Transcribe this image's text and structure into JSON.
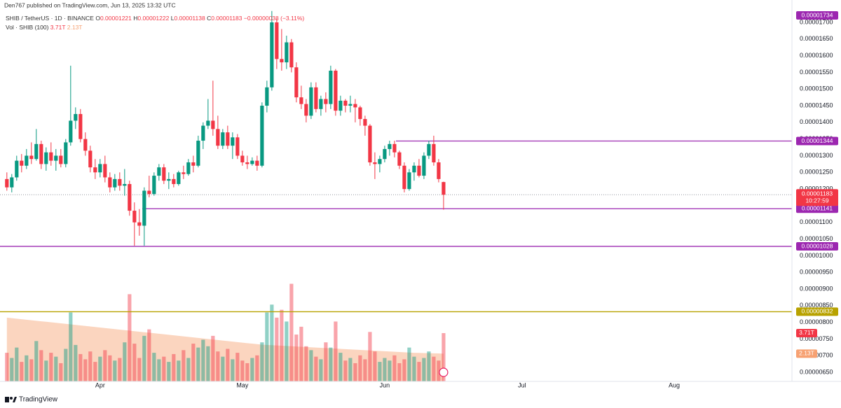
{
  "chart_data": {
    "type": "candlestick",
    "published": "Den767 published on TradingView.com, Jun 13, 2025 13:32 UTC",
    "symbol": "SHIB / TetherUS · 1D · BINANCE",
    "ohlc_legend": [
      {
        "label": "O",
        "value": "0.00001221"
      },
      {
        "label": "H",
        "value": "0.00001222"
      },
      {
        "label": "L",
        "value": "0.00001138"
      },
      {
        "label": "C",
        "value": "0.00001183"
      }
    ],
    "change": "−0.00000038 (−3.11%)",
    "up_color": "#089981",
    "down_color": "#f23645",
    "open": [
      1.23e-05,
      1.205e-05,
      1.235e-05,
      1.285e-05,
      1.27e-05,
      1.3e-05,
      1.29e-05,
      1.335e-05,
      1.275e-05,
      1.31e-05,
      1.285e-05,
      1.3e-05,
      1.275e-05,
      1.34e-05,
      1.405e-05,
      1.425e-05,
      1.35e-05,
      1.315e-05,
      1.265e-05,
      1.25e-05,
      1.275e-05,
      1.235e-05,
      1.205e-05,
      1.23e-05,
      1.21e-05,
      1.215e-05,
      1.135e-05,
      1.1e-05,
      1.09e-05,
      1.195e-05,
      1.185e-05,
      1.24e-05,
      1.265e-05,
      1.225e-05,
      1.23e-05,
      1.215e-05,
      1.25e-05,
      1.245e-05,
      1.28e-05,
      1.27e-05,
      1.345e-05,
      1.39e-05,
      1.405e-05,
      1.38e-05,
      1.33e-05,
      1.37e-05,
      1.33e-05,
      1.355e-05,
      1.3e-05,
      1.28e-05,
      1.275e-05,
      1.285e-05,
      1.27e-05,
      1.45e-05,
      1.505e-05,
      1.7e-05,
      1.59e-05,
      1.58e-05,
      1.64e-05,
      1.565e-05,
      1.475e-05,
      1.455e-05,
      1.42e-05,
      1.505e-05,
      1.44e-05,
      1.47e-05,
      1.455e-05,
      1.555e-05,
      1.435e-05,
      1.465e-05,
      1.45e-05,
      1.455e-05,
      1.445e-05,
      1.41e-05,
      1.39e-05,
      1.28e-05,
      1.275e-05,
      1.29e-05,
      1.32e-05,
      1.335e-05,
      1.31e-05,
      1.27e-05,
      1.2e-05,
      1.25e-05,
      1.27e-05,
      1.24e-05,
      1.3e-05,
      1.335e-05,
      1.28e-05,
      1.221e-05
    ],
    "high": [
      1.25e-05,
      1.245e-05,
      1.3e-05,
      1.305e-05,
      1.32e-05,
      1.34e-05,
      1.38e-05,
      1.345e-05,
      1.325e-05,
      1.34e-05,
      1.32e-05,
      1.32e-05,
      1.35e-05,
      1.57e-05,
      1.445e-05,
      1.44e-05,
      1.37e-05,
      1.33e-05,
      1.29e-05,
      1.29e-05,
      1.3e-05,
      1.25e-05,
      1.245e-05,
      1.25e-05,
      1.26e-05,
      1.225e-05,
      1.16e-05,
      1.14e-05,
      1.205e-05,
      1.24e-05,
      1.25e-05,
      1.275e-05,
      1.275e-05,
      1.25e-05,
      1.245e-05,
      1.255e-05,
      1.27e-05,
      1.29e-05,
      1.3e-05,
      1.36e-05,
      1.4e-05,
      1.47e-05,
      1.525e-05,
      1.42e-05,
      1.38e-05,
      1.39e-05,
      1.37e-05,
      1.365e-05,
      1.315e-05,
      1.3e-05,
      1.295e-05,
      1.3e-05,
      1.46e-05,
      1.525e-05,
      1.734e-05,
      1.71e-05,
      1.68e-05,
      1.66e-05,
      1.65e-05,
      1.58e-05,
      1.51e-05,
      1.47e-05,
      1.52e-05,
      1.52e-05,
      1.48e-05,
      1.49e-05,
      1.57e-05,
      1.56e-05,
      1.48e-05,
      1.47e-05,
      1.48e-05,
      1.47e-05,
      1.45e-05,
      1.42e-05,
      1.395e-05,
      1.31e-05,
      1.3e-05,
      1.33e-05,
      1.345e-05,
      1.345e-05,
      1.315e-05,
      1.28e-05,
      1.26e-05,
      1.28e-05,
      1.29e-05,
      1.31e-05,
      1.345e-05,
      1.36e-05,
      1.29e-05,
      1.222e-05
    ],
    "low": [
      1.195e-05,
      1.19e-05,
      1.225e-05,
      1.25e-05,
      1.26e-05,
      1.275e-05,
      1.285e-05,
      1.26e-05,
      1.255e-05,
      1.27e-05,
      1.255e-05,
      1.265e-05,
      1.265e-05,
      1.33e-05,
      1.38e-05,
      1.34e-05,
      1.3e-05,
      1.25e-05,
      1.23e-05,
      1.235e-05,
      1.22e-05,
      1.19e-05,
      1.195e-05,
      1.195e-05,
      1.18e-05,
      1.12e-05,
      1.03e-05,
      1.06e-05,
      1.03e-05,
      1.175e-05,
      1.18e-05,
      1.225e-05,
      1.215e-05,
      1.2e-05,
      1.205e-05,
      1.21e-05,
      1.23e-05,
      1.24e-05,
      1.25e-05,
      1.265e-05,
      1.32e-05,
      1.38e-05,
      1.36e-05,
      1.32e-05,
      1.32e-05,
      1.32e-05,
      1.29e-05,
      1.29e-05,
      1.27e-05,
      1.26e-05,
      1.27e-05,
      1.255e-05,
      1.265e-05,
      1.43e-05,
      1.495e-05,
      1.56e-05,
      1.555e-05,
      1.56e-05,
      1.55e-05,
      1.46e-05,
      1.44e-05,
      1.4e-05,
      1.41e-05,
      1.43e-05,
      1.42e-05,
      1.43e-05,
      1.44e-05,
      1.42e-05,
      1.42e-05,
      1.43e-05,
      1.43e-05,
      1.4e-05,
      1.39e-05,
      1.36e-05,
      1.27e-05,
      1.23e-05,
      1.25e-05,
      1.28e-05,
      1.3e-05,
      1.295e-05,
      1.26e-05,
      1.19e-05,
      1.195e-05,
      1.225e-05,
      1.235e-05,
      1.23e-05,
      1.29e-05,
      1.27e-05,
      1.22e-05,
      1.138e-05
    ],
    "close": [
      1.205e-05,
      1.235e-05,
      1.285e-05,
      1.27e-05,
      1.3e-05,
      1.29e-05,
      1.335e-05,
      1.275e-05,
      1.31e-05,
      1.285e-05,
      1.3e-05,
      1.275e-05,
      1.34e-05,
      1.405e-05,
      1.425e-05,
      1.35e-05,
      1.315e-05,
      1.265e-05,
      1.25e-05,
      1.275e-05,
      1.235e-05,
      1.205e-05,
      1.23e-05,
      1.21e-05,
      1.215e-05,
      1.135e-05,
      1.1e-05,
      1.09e-05,
      1.195e-05,
      1.185e-05,
      1.24e-05,
      1.265e-05,
      1.225e-05,
      1.23e-05,
      1.215e-05,
      1.25e-05,
      1.245e-05,
      1.28e-05,
      1.27e-05,
      1.345e-05,
      1.39e-05,
      1.405e-05,
      1.38e-05,
      1.33e-05,
      1.37e-05,
      1.33e-05,
      1.355e-05,
      1.3e-05,
      1.28e-05,
      1.275e-05,
      1.285e-05,
      1.27e-05,
      1.45e-05,
      1.505e-05,
      1.7e-05,
      1.59e-05,
      1.58e-05,
      1.64e-05,
      1.565e-05,
      1.475e-05,
      1.455e-05,
      1.42e-05,
      1.505e-05,
      1.44e-05,
      1.47e-05,
      1.455e-05,
      1.555e-05,
      1.435e-05,
      1.465e-05,
      1.45e-05,
      1.455e-05,
      1.445e-05,
      1.41e-05,
      1.39e-05,
      1.28e-05,
      1.275e-05,
      1.29e-05,
      1.32e-05,
      1.335e-05,
      1.31e-05,
      1.27e-05,
      1.2e-05,
      1.25e-05,
      1.27e-05,
      1.24e-05,
      1.3e-05,
      1.335e-05,
      1.28e-05,
      1.23e-05,
      1.183e-05
    ],
    "xlim": [
      -1.4,
      160
    ],
    "xticks": [
      {
        "value": 19,
        "label": "Apr"
      },
      {
        "value": 48,
        "label": "May"
      },
      {
        "value": 77,
        "label": "Jun"
      },
      {
        "value": 105,
        "label": "Jul"
      },
      {
        "value": 136,
        "label": "Aug"
      }
    ],
    "ylim": [
      6.23e-06,
      1.767e-05
    ],
    "yticks": [
      {
        "value": 6.5e-06,
        "label": "0.00000650"
      },
      {
        "value": 7e-06,
        "label": "0.00000700"
      },
      {
        "value": 7.5e-06,
        "label": "0.00000750"
      },
      {
        "value": 8e-06,
        "label": "0.00000800"
      },
      {
        "value": 8.5e-06,
        "label": "0.00000850"
      },
      {
        "value": 9e-06,
        "label": "0.00000900"
      },
      {
        "value": 9.5e-06,
        "label": "0.00000950"
      },
      {
        "value": 1e-05,
        "label": "0.00001000"
      },
      {
        "value": 1.05e-05,
        "label": "0.00001050"
      },
      {
        "value": 1.1e-05,
        "label": "0.00001100"
      },
      {
        "value": 1.15e-05,
        "label": "0.00001150"
      },
      {
        "value": 1.2e-05,
        "label": "0.00001200"
      },
      {
        "value": 1.25e-05,
        "label": "0.00001250"
      },
      {
        "value": 1.3e-05,
        "label": "0.00001300"
      },
      {
        "value": 1.35e-05,
        "label": "0.00001350"
      },
      {
        "value": 1.4e-05,
        "label": "0.00001400"
      },
      {
        "value": 1.45e-05,
        "label": "0.00001450"
      },
      {
        "value": 1.5e-05,
        "label": "0.00001500"
      },
      {
        "value": 1.55e-05,
        "label": "0.00001550"
      },
      {
        "value": 1.6e-05,
        "label": "0.00001600"
      },
      {
        "value": 1.65e-05,
        "label": "0.00001650"
      },
      {
        "value": 1.7e-05,
        "label": "0.00001700"
      }
    ],
    "high_marker": {
      "value": 1.734e-05,
      "label": "0.00001734",
      "color": "#9c27b0"
    },
    "levels": [
      {
        "value": 1.344e-05,
        "label": "0.00001344",
        "color": "#9c27b0"
      },
      {
        "value": 1.141e-05,
        "label": "0.00001141",
        "color": "#9c27b0"
      },
      {
        "value": 1.028e-05,
        "label": "0.00001028",
        "color": "#9c27b0"
      },
      {
        "value": 8.32e-06,
        "label": "0.00000832",
        "color": "#b8a200"
      }
    ],
    "last_price_label": "0.00001183",
    "countdown": "10:27:59",
    "volume": {
      "name": "Vol · SHIB (100)",
      "last_label": "3.71T",
      "ylim": [
        0,
        29.3
      ],
      "values": [
        2.2,
        1.8,
        2.6,
        1.5,
        2.0,
        1.7,
        3.1,
        2.4,
        1.6,
        2.2,
        1.9,
        1.4,
        2.5,
        5.3,
        2.8,
        2.1,
        1.7,
        2.3,
        1.5,
        1.9,
        2.4,
        2.0,
        1.6,
        1.8,
        3.0,
        6.7,
        2.9,
        1.8,
        3.5,
        4.0,
        2.2,
        1.7,
        1.9,
        1.5,
        2.1,
        1.6,
        2.4,
        1.8,
        2.9,
        2.6,
        3.2,
        2.7,
        3.5,
        2.3,
        1.9,
        2.5,
        1.7,
        2.2,
        1.6,
        1.4,
        1.8,
        2.0,
        3.0,
        5.3,
        5.9,
        4.9,
        5.5,
        4.6,
        7.5,
        3.6,
        4.2,
        2.7,
        2.4,
        1.9,
        1.7,
        3.0,
        2.6,
        4.6,
        2.2,
        1.6,
        1.8,
        1.4,
        2.0,
        1.7,
        3.8,
        2.3,
        1.5,
        1.8,
        1.6,
        2.0,
        1.4,
        1.7,
        2.6,
        1.9,
        1.5,
        1.8,
        2.3,
        1.9,
        1.6,
        3.71
      ],
      "ma": {
        "color": "#f7a172",
        "last_label": "2.13T",
        "values": [
          4.9,
          4.86,
          4.82,
          4.78,
          4.74,
          4.7,
          4.66,
          4.62,
          4.58,
          4.54,
          4.5,
          4.46,
          4.42,
          4.38,
          4.34,
          4.3,
          4.26,
          4.22,
          4.18,
          4.14,
          4.1,
          4.06,
          4.02,
          3.98,
          3.94,
          3.9,
          3.86,
          3.82,
          3.78,
          3.74,
          3.7,
          3.66,
          3.62,
          3.58,
          3.54,
          3.5,
          3.46,
          3.42,
          3.38,
          3.34,
          3.3,
          3.26,
          3.22,
          3.18,
          3.14,
          3.1,
          3.06,
          3.02,
          2.98,
          2.94,
          2.9,
          2.86,
          2.82,
          2.8,
          2.78,
          2.76,
          2.74,
          2.72,
          2.7,
          2.68,
          2.66,
          2.64,
          2.62,
          2.6,
          2.58,
          2.56,
          2.54,
          2.52,
          2.5,
          2.48,
          2.46,
          2.44,
          2.42,
          2.4,
          2.38,
          2.36,
          2.34,
          2.32,
          2.3,
          2.28,
          2.26,
          2.24,
          2.22,
          2.2,
          2.19,
          2.18,
          2.17,
          2.16,
          2.15,
          2.13
        ]
      }
    },
    "footer": "TradingView"
  }
}
